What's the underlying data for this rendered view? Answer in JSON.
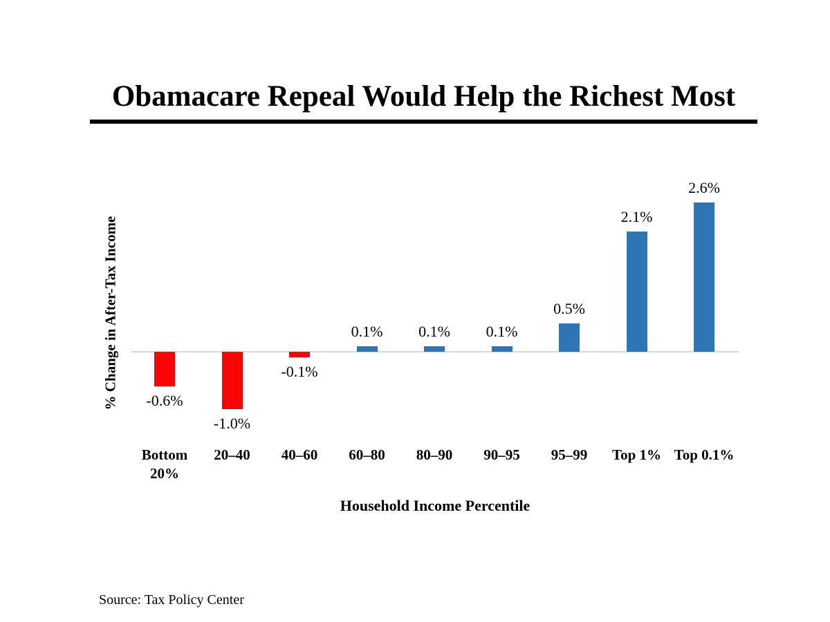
{
  "page": {
    "title": "Obamacare Repeal Would Help the Richest Most",
    "source": "Source: Tax Policy Center"
  },
  "chart_data": {
    "type": "bar",
    "title": "Obamacare Repeal Would Help the Richest Most",
    "categories": [
      "Bottom\n20%",
      "20–40",
      "40–60",
      "60–80",
      "80–90",
      "90–95",
      "95–99",
      "Top 1%",
      "Top 0.1%"
    ],
    "values": [
      -0.6,
      -1.0,
      -0.1,
      0.1,
      0.1,
      0.1,
      0.5,
      2.1,
      2.6
    ],
    "data_labels": [
      "-0.6%",
      "-1.0%",
      "-0.1%",
      "0.1%",
      "0.1%",
      "0.1%",
      "0.5%",
      "2.1%",
      "2.6%"
    ],
    "xlabel": "Household Income Percentile",
    "ylabel": "% Change in After-Tax Income",
    "ylim": [
      -1.2,
      3.0
    ],
    "grid": false,
    "legend": null,
    "baseline_value": 0,
    "colors": {
      "positive": "#2e75b5",
      "negative": "#f90505",
      "axis_line": "#d9d9d9",
      "text": "#000000"
    },
    "source": "Source: Tax Policy Center"
  }
}
